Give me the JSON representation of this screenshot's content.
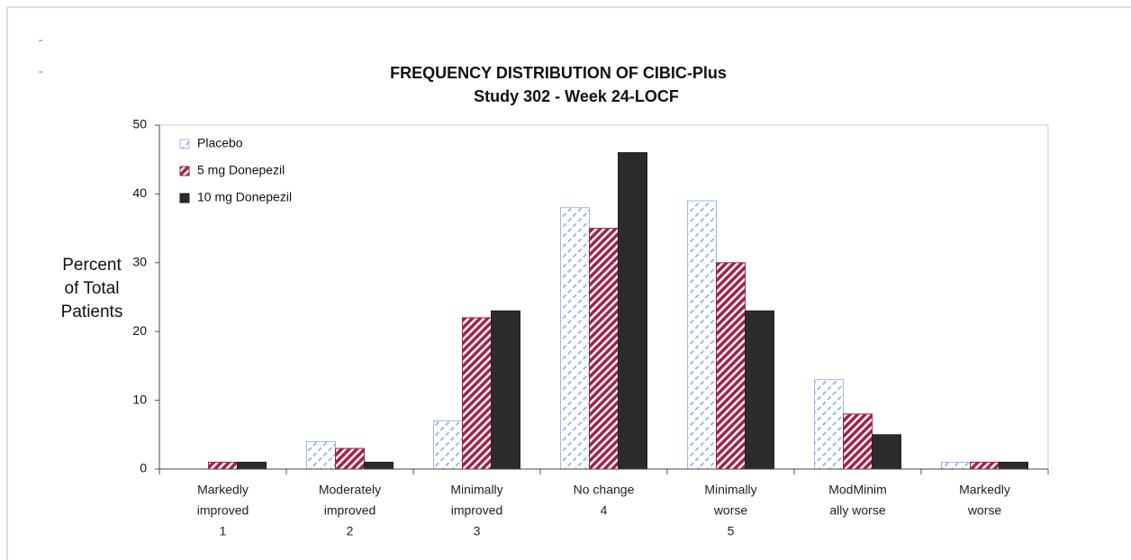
{
  "chart_data": {
    "type": "bar",
    "title": "FREQUENCY DISTRIBUTION OF CIBIC-Plus",
    "subtitle": "Study 302 - Week 24-LOCF",
    "y_label": [
      "Percent",
      "of Total",
      "Patients"
    ],
    "categories": [
      [
        "Markedly",
        "improved",
        "1"
      ],
      [
        "Moderately",
        "improved",
        "2"
      ],
      [
        "Minimally",
        "improved",
        "3"
      ],
      [
        "No change",
        "4"
      ],
      [
        "Minimally",
        "worse",
        "5"
      ],
      [
        "ModMinim",
        "ally worse"
      ],
      [
        "Markedly",
        "worse"
      ]
    ],
    "series": [
      {
        "name": "Placebo",
        "color": "#9fb8e6",
        "pattern": "dashed",
        "values": [
          0,
          4,
          7,
          38,
          39,
          13,
          1
        ]
      },
      {
        "name": "5 mg Donepezil",
        "color": "#a0204a",
        "pattern": "hatch",
        "values": [
          1,
          3,
          22,
          35,
          30,
          8,
          1
        ]
      },
      {
        "name": "10 mg  Donepezil",
        "color": "#2b2b2b",
        "pattern": "solid",
        "values": [
          1,
          1,
          23,
          46,
          23,
          5,
          1
        ]
      }
    ],
    "ylim": [
      0,
      50
    ],
    "yticks": [
      0,
      10,
      20,
      30,
      40,
      50
    ],
    "legend": "top-left"
  }
}
